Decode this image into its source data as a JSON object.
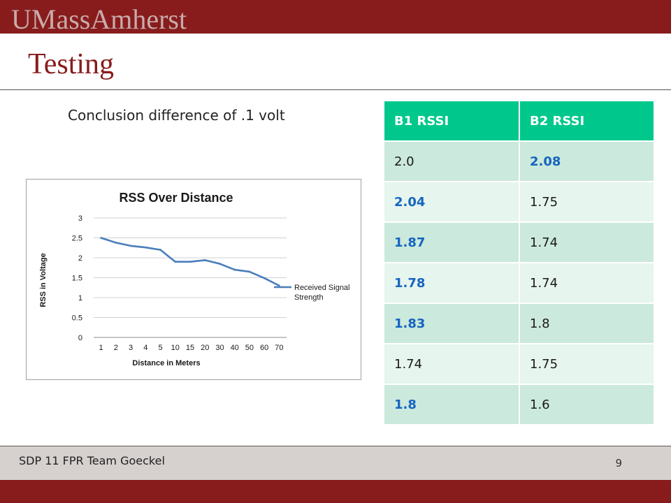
{
  "header": {
    "brand": "UMassAmherst",
    "title": "Testing"
  },
  "conclusion": "Conclusion difference of .1 volt",
  "table": {
    "headers": [
      "B1 RSSI",
      "B2 RSSI"
    ],
    "rows": [
      [
        {
          "v": "2.0",
          "hl": false
        },
        {
          "v": "2.08",
          "hl": true
        }
      ],
      [
        {
          "v": "2.04",
          "hl": true
        },
        {
          "v": "1.75",
          "hl": false
        }
      ],
      [
        {
          "v": "1.87",
          "hl": true
        },
        {
          "v": "1.74",
          "hl": false
        }
      ],
      [
        {
          "v": "1.78",
          "hl": true
        },
        {
          "v": "1.74",
          "hl": false
        }
      ],
      [
        {
          "v": "1.83",
          "hl": true
        },
        {
          "v": "1.8",
          "hl": false
        }
      ],
      [
        {
          "v": "1.74",
          "hl": false
        },
        {
          "v": "1.75",
          "hl": false
        }
      ],
      [
        {
          "v": "1.8",
          "hl": true
        },
        {
          "v": "1.6",
          "hl": false
        }
      ]
    ],
    "colors": {
      "header_bg": "#00c88c",
      "highlight_text": "#1565c0"
    }
  },
  "chart_data": {
    "type": "line",
    "title": "RSS Over Distance",
    "xlabel": "Distance in Meters",
    "ylabel": "RSS in Voltage",
    "categories": [
      "1",
      "2",
      "3",
      "4",
      "5",
      "10",
      "15",
      "20",
      "30",
      "40",
      "50",
      "60",
      "70"
    ],
    "series": [
      {
        "name": "Received Signal Strength",
        "color": "#4a7ebb",
        "values": [
          2.5,
          2.38,
          2.3,
          2.26,
          2.2,
          1.9,
          1.9,
          1.94,
          1.85,
          1.7,
          1.65,
          1.49,
          1.3
        ]
      }
    ],
    "yticks": [
      "0",
      "0.5",
      "1",
      "1.5",
      "2",
      "2.5",
      "3"
    ],
    "ylim": [
      0,
      3
    ],
    "grid": true,
    "legend": "right"
  },
  "footer": {
    "text": "SDP 11 FPR Team Goeckel",
    "page": "9"
  },
  "colors": {
    "brand": "#881c1c",
    "footer_band": "#d6d1cf"
  }
}
